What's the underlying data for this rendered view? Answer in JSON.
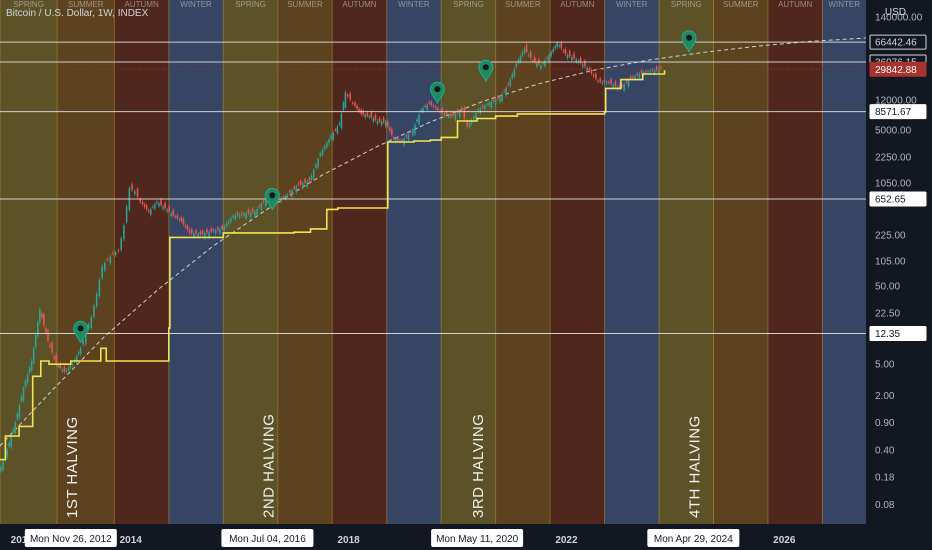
{
  "header": {
    "title": "Bitcoin / U.S. Dollar, 1W, INDEX",
    "currency": "USD"
  },
  "chart_data": {
    "type": "line",
    "title": "Bitcoin / U.S. Dollar, 1W, INDEX",
    "scale": "log",
    "grid": false,
    "xlim": [
      2011.6,
      2027.5
    ],
    "ylim": [
      0.045,
      230000
    ],
    "y_ticks": [
      {
        "value": 140000,
        "label": "140000.00"
      },
      {
        "value": 12000,
        "label": "12000.00"
      },
      {
        "value": 5000,
        "label": "5000.00"
      },
      {
        "value": 2250,
        "label": "2250.00"
      },
      {
        "value": 1050,
        "label": "1050.00"
      },
      {
        "value": 225,
        "label": "225.00"
      },
      {
        "value": 105,
        "label": "105.00"
      },
      {
        "value": 50,
        "label": "50.00"
      },
      {
        "value": 22.5,
        "label": "22.50"
      },
      {
        "value": 5,
        "label": "5.00"
      },
      {
        "value": 2,
        "label": "2.00"
      },
      {
        "value": 0.9,
        "label": "0.90"
      },
      {
        "value": 0.4,
        "label": "0.40"
      },
      {
        "value": 0.18,
        "label": "0.18"
      },
      {
        "value": 0.08,
        "label": "0.08"
      }
    ],
    "x_ticks": [
      {
        "value": 2012,
        "label": "2012"
      },
      {
        "value": 2014,
        "label": "2014"
      },
      {
        "value": 2018,
        "label": "2018"
      },
      {
        "value": 2022,
        "label": "2022"
      },
      {
        "value": 2026,
        "label": "2026"
      }
    ],
    "date_markers": [
      {
        "value": 2012.9,
        "label": "Mon Nov 26, 2012"
      },
      {
        "value": 2016.51,
        "label": "Mon Jul 04, 2016"
      },
      {
        "value": 2020.36,
        "label": "Mon May 11, 2020"
      },
      {
        "value": 2024.33,
        "label": "Mon Apr 29, 2024"
      }
    ],
    "halvings": [
      {
        "value": 2012.9,
        "label": "1ST HALVING"
      },
      {
        "value": 2016.51,
        "label": "2ND HALVING"
      },
      {
        "value": 2020.36,
        "label": "3RD HALVING"
      },
      {
        "value": 2024.33,
        "label": "4TH HALVING"
      }
    ],
    "seasons": [
      {
        "start": 2011.6,
        "end": 2012.65,
        "name": "SPRING",
        "color": "#6b5d28"
      },
      {
        "start": 2012.65,
        "end": 2013.7,
        "name": "SUMMER",
        "color": "#6a4a1f"
      },
      {
        "start": 2013.7,
        "end": 2014.7,
        "name": "AUTUMN",
        "color": "#5a2a1c"
      },
      {
        "start": 2014.7,
        "end": 2015.7,
        "name": "WINTER",
        "color": "#3c4d6e"
      },
      {
        "start": 2015.7,
        "end": 2016.7,
        "name": "SPRING",
        "color": "#6b5d28"
      },
      {
        "start": 2016.7,
        "end": 2017.7,
        "name": "SUMMER",
        "color": "#6a4a1f"
      },
      {
        "start": 2017.7,
        "end": 2018.7,
        "name": "AUTUMN",
        "color": "#5a2a1c"
      },
      {
        "start": 2018.7,
        "end": 2019.7,
        "name": "WINTER",
        "color": "#3c4d6e"
      },
      {
        "start": 2019.7,
        "end": 2020.7,
        "name": "SPRING",
        "color": "#6b5d28"
      },
      {
        "start": 2020.7,
        "end": 2021.7,
        "name": "SUMMER",
        "color": "#6a4a1f"
      },
      {
        "start": 2021.7,
        "end": 2022.7,
        "name": "AUTUMN",
        "color": "#5a2a1c"
      },
      {
        "start": 2022.7,
        "end": 2023.7,
        "name": "WINTER",
        "color": "#3c4d6e"
      },
      {
        "start": 2023.7,
        "end": 2024.7,
        "name": "SPRING",
        "color": "#6b5d28"
      },
      {
        "start": 2024.7,
        "end": 2025.7,
        "name": "SUMMER",
        "color": "#6a4a1f"
      },
      {
        "start": 2025.7,
        "end": 2026.7,
        "name": "AUTUMN",
        "color": "#5a2a1c"
      },
      {
        "start": 2026.7,
        "end": 2027.5,
        "name": "WINTER",
        "color": "#3c4d6e"
      }
    ],
    "price_levels": [
      {
        "value": 66442.46,
        "label": "66442.46",
        "bg": "#131722",
        "fg": "#d1d4dc",
        "border": "#d1d4dc"
      },
      {
        "value": 36976.15,
        "label": "36976.15",
        "bg": "#131722",
        "fg": "#d1d4dc",
        "border": "#d1d4dc"
      },
      {
        "value": 29842.88,
        "label": "29842.88",
        "bg": "#a8322d",
        "fg": "#ffffff",
        "border": "#a8322d",
        "dotted": true
      },
      {
        "value": 8571.67,
        "label": "8571.67",
        "bg": "#ffffff",
        "fg": "#131722",
        "border": "#ffffff"
      },
      {
        "value": 652.65,
        "label": "652.65",
        "bg": "#ffffff",
        "fg": "#131722",
        "border": "#ffffff"
      },
      {
        "value": 12.35,
        "label": "12.35",
        "bg": "#ffffff",
        "fg": "#131722",
        "border": "#ffffff"
      }
    ],
    "series": [
      {
        "type": "candles",
        "color_up": "#26a69a",
        "color_down": "#ef5350",
        "x": [
          2011.6,
          2011.75,
          2011.9,
          2012.05,
          2012.2,
          2012.35,
          2012.5,
          2012.65,
          2012.8,
          2012.95,
          2013.1,
          2013.2,
          2013.3,
          2013.4,
          2013.5,
          2013.6,
          2013.7,
          2013.8,
          2013.9,
          2014.0,
          2014.1,
          2014.2,
          2014.35,
          2014.5,
          2014.65,
          2014.8,
          2014.95,
          2015.1,
          2015.3,
          2015.5,
          2015.7,
          2015.9,
          2016.1,
          2016.3,
          2016.5,
          2016.7,
          2016.9,
          2017.1,
          2017.3,
          2017.5,
          2017.7,
          2017.85,
          2017.96,
          2018.1,
          2018.25,
          2018.4,
          2018.55,
          2018.7,
          2018.85,
          2019.0,
          2019.2,
          2019.35,
          2019.5,
          2019.7,
          2019.9,
          2020.1,
          2020.2,
          2020.4,
          2020.6,
          2020.8,
          2020.95,
          2021.1,
          2021.25,
          2021.4,
          2021.55,
          2021.7,
          2021.85,
          2022.0,
          2022.2,
          2022.4,
          2022.6,
          2022.8,
          2023.0,
          2023.2,
          2023.4,
          2023.6,
          2023.75
        ],
        "values": [
          0.2,
          0.4,
          0.9,
          2.5,
          5.5,
          25,
          10,
          5,
          4,
          5,
          8,
          13,
          20,
          40,
          90,
          110,
          130,
          140,
          300,
          900,
          820,
          600,
          450,
          600,
          500,
          400,
          340,
          240,
          230,
          250,
          270,
          400,
          420,
          450,
          650,
          620,
          740,
          1000,
          1100,
          2500,
          4200,
          6000,
          15000,
          11000,
          8000,
          7500,
          6500,
          6300,
          3800,
          3600,
          5000,
          9000,
          11000,
          8500,
          7400,
          9000,
          5500,
          9000,
          11000,
          13000,
          19000,
          35000,
          55000,
          38000,
          33000,
          45000,
          65000,
          47000,
          40000,
          31000,
          21000,
          20000,
          17000,
          23000,
          27000,
          29000,
          29842.88
        ]
      },
      {
        "type": "step",
        "color": "#f2e350",
        "x": [
          2011.6,
          2011.7,
          2011.95,
          2012.2,
          2012.35,
          2012.5,
          2012.9,
          2013.4,
          2013.45,
          2013.55,
          2014.7,
          2014.72,
          2015.7,
          2016.2,
          2016.51,
          2016.9,
          2017.0,
          2017.3,
          2017.6,
          2017.8,
          2018.7,
          2018.72,
          2019.2,
          2019.5,
          2019.7,
          2020.0,
          2020.36,
          2020.7,
          2021.1,
          2022.7,
          2022.72,
          2023.0,
          2023.4,
          2023.8
        ],
        "values": [
          0.3,
          0.6,
          0.8,
          3.5,
          5.5,
          5,
          5.5,
          5.5,
          8,
          5.5,
          14.5,
          210,
          240,
          240,
          240,
          240,
          245,
          270,
          480,
          500,
          500,
          3500,
          3600,
          3700,
          4000,
          6500,
          7000,
          7500,
          8000,
          8500,
          17000,
          22000,
          26000,
          29000
        ]
      },
      {
        "type": "curve",
        "dashed": true,
        "color": "#e0e0e0",
        "x": [
          2011.6,
          2012.5,
          2013.5,
          2014.5,
          2015.5,
          2016.5,
          2017.5,
          2018.5,
          2019.5,
          2020.5,
          2021.5,
          2022.5,
          2023.5,
          2024.5,
          2025.5,
          2026.5,
          2027.5
        ],
        "values": [
          0.45,
          2.1,
          11,
          45,
          160,
          480,
          1300,
          3000,
          6300,
          11800,
          19500,
          29000,
          39000,
          49000,
          59000,
          68000,
          75000
        ]
      }
    ],
    "pins": [
      {
        "x": 2013.08,
        "y": 9.5
      },
      {
        "x": 2016.6,
        "y": 480
      },
      {
        "x": 2019.63,
        "y": 11000
      },
      {
        "x": 2020.52,
        "y": 21000
      },
      {
        "x": 2024.25,
        "y": 50000
      }
    ]
  }
}
